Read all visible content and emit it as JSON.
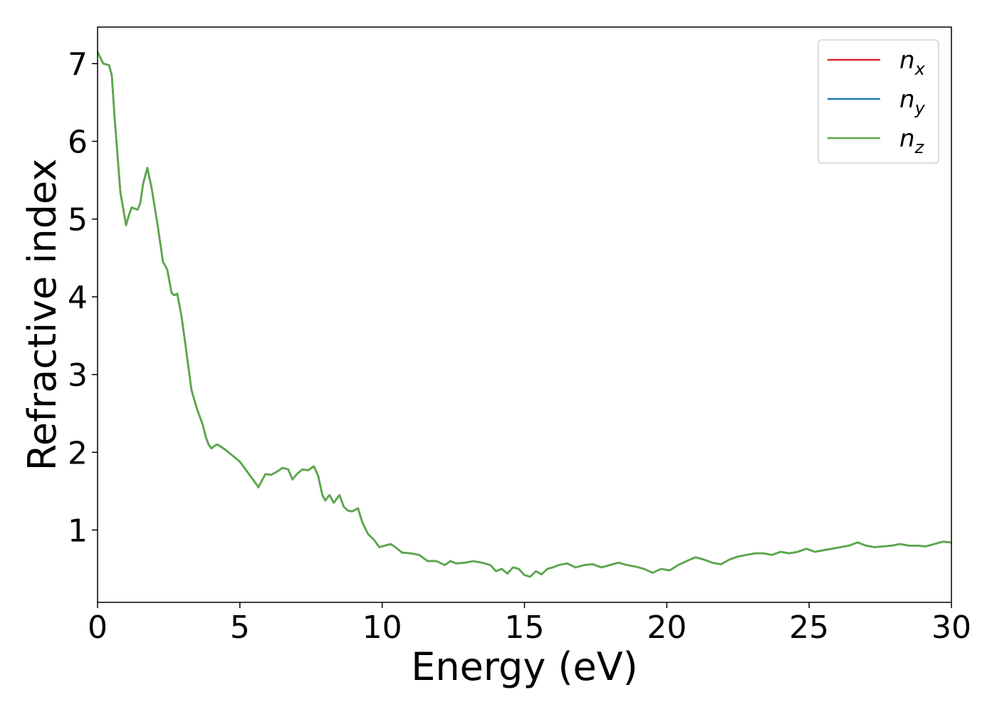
{
  "chart_data": {
    "type": "line",
    "title": "",
    "xlabel": "Energy (eV)",
    "ylabel": "Refractive index",
    "xlim": [
      0,
      30
    ],
    "ylim": [
      0.07,
      7.47
    ],
    "xticks": [
      0,
      5,
      10,
      15,
      20,
      25,
      30
    ],
    "yticks": [
      1,
      2,
      3,
      4,
      5,
      6,
      7
    ],
    "grid": false,
    "legend": "top-right",
    "series": [
      {
        "name": "n",
        "subscript": "x",
        "color": "#d62728",
        "values_ref": "shared"
      },
      {
        "name": "n",
        "subscript": "y",
        "color": "#1f77b4",
        "values_ref": "shared"
      },
      {
        "name": "n",
        "subscript": "z",
        "color": "#5aaa46",
        "values_ref": "shared"
      }
    ],
    "x": [
      0,
      0.2,
      0.4,
      0.5,
      0.6,
      0.8,
      1.0,
      1.1,
      1.2,
      1.4,
      1.5,
      1.6,
      1.75,
      1.9,
      2.1,
      2.3,
      2.45,
      2.6,
      2.7,
      2.8,
      2.95,
      3.1,
      3.3,
      3.5,
      3.7,
      3.8,
      3.9,
      4.0,
      4.1,
      4.2,
      4.3,
      4.5,
      4.8,
      5.0,
      5.2,
      5.4,
      5.6,
      5.65,
      5.75,
      5.9,
      6.1,
      6.3,
      6.5,
      6.7,
      6.85,
      7.0,
      7.2,
      7.4,
      7.6,
      7.75,
      7.9,
      8.0,
      8.15,
      8.3,
      8.5,
      8.65,
      8.8,
      8.95,
      9.15,
      9.3,
      9.5,
      9.7,
      9.9,
      10.1,
      10.3,
      10.5,
      10.7,
      11.0,
      11.3,
      11.6,
      11.9,
      12.2,
      12.4,
      12.6,
      12.9,
      13.2,
      13.5,
      13.8,
      14.0,
      14.2,
      14.4,
      14.6,
      14.8,
      15.0,
      15.2,
      15.4,
      15.6,
      15.8,
      16.0,
      16.2,
      16.5,
      16.8,
      17.1,
      17.4,
      17.7,
      18.0,
      18.3,
      18.6,
      18.9,
      19.2,
      19.5,
      19.8,
      20.1,
      20.4,
      20.7,
      21.0,
      21.3,
      21.6,
      21.9,
      22.2,
      22.5,
      22.8,
      23.1,
      23.4,
      23.7,
      24.0,
      24.3,
      24.6,
      24.9,
      25.2,
      25.5,
      25.8,
      26.1,
      26.4,
      26.7,
      27.0,
      27.3,
      27.6,
      27.9,
      28.2,
      28.5,
      28.8,
      29.1,
      29.4,
      29.7,
      30.0
    ],
    "y": [
      7.15,
      7.0,
      6.98,
      6.85,
      6.3,
      5.35,
      4.92,
      5.05,
      5.15,
      5.12,
      5.2,
      5.45,
      5.66,
      5.4,
      4.95,
      4.45,
      4.35,
      4.05,
      4.02,
      4.04,
      3.75,
      3.35,
      2.8,
      2.55,
      2.35,
      2.2,
      2.1,
      2.05,
      2.08,
      2.1,
      2.08,
      2.03,
      1.94,
      1.88,
      1.78,
      1.68,
      1.58,
      1.55,
      1.62,
      1.72,
      1.71,
      1.75,
      1.8,
      1.78,
      1.65,
      1.72,
      1.78,
      1.77,
      1.82,
      1.7,
      1.45,
      1.38,
      1.45,
      1.35,
      1.45,
      1.3,
      1.25,
      1.24,
      1.28,
      1.1,
      0.95,
      0.88,
      0.78,
      0.8,
      0.82,
      0.77,
      0.71,
      0.7,
      0.68,
      0.6,
      0.6,
      0.55,
      0.6,
      0.57,
      0.58,
      0.6,
      0.58,
      0.55,
      0.47,
      0.5,
      0.44,
      0.52,
      0.5,
      0.42,
      0.4,
      0.47,
      0.43,
      0.5,
      0.52,
      0.55,
      0.57,
      0.52,
      0.55,
      0.56,
      0.52,
      0.55,
      0.58,
      0.55,
      0.53,
      0.5,
      0.45,
      0.5,
      0.48,
      0.55,
      0.6,
      0.65,
      0.62,
      0.58,
      0.56,
      0.62,
      0.66,
      0.68,
      0.7,
      0.7,
      0.68,
      0.72,
      0.7,
      0.72,
      0.76,
      0.72,
      0.74,
      0.76,
      0.78,
      0.8,
      0.84,
      0.8,
      0.78,
      0.79,
      0.8,
      0.82,
      0.8,
      0.8,
      0.79,
      0.82,
      0.85,
      0.84
    ]
  }
}
